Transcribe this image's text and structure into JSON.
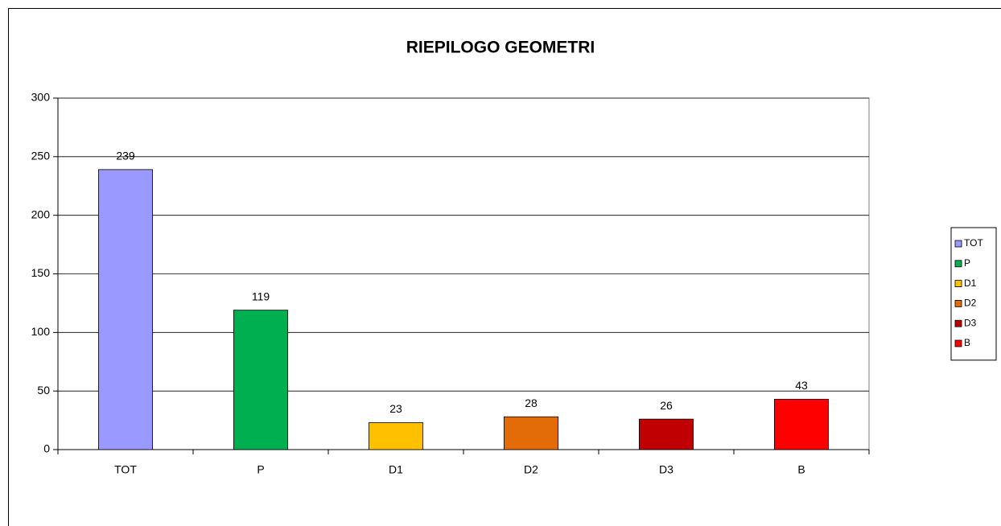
{
  "chart_data": {
    "type": "bar",
    "title": "RIEPILOGO GEOMETRI",
    "categories": [
      "TOT",
      "P",
      "D1",
      "D2",
      "D3",
      "B"
    ],
    "values": [
      239,
      119,
      23,
      28,
      26,
      43
    ],
    "colors": [
      "#9999ff",
      "#00b050",
      "#ffc000",
      "#e36c09",
      "#c00000",
      "#ff0000"
    ],
    "ylim": [
      0,
      300
    ],
    "yticks": [
      0,
      50,
      100,
      150,
      200,
      250,
      300
    ],
    "grid": true,
    "legend": "right"
  }
}
